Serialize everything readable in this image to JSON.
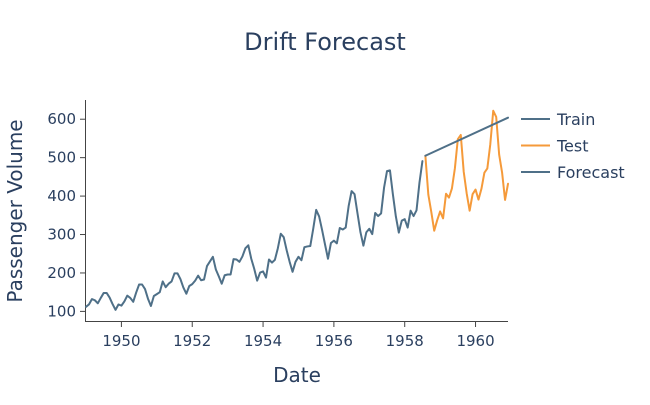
{
  "chart_data": {
    "type": "line",
    "title": "Drift Forecast",
    "xlabel": "Date",
    "ylabel": "Passenger Volume",
    "xlim": [
      "1949-01",
      "1960-12"
    ],
    "ylim": [
      75,
      650
    ],
    "x_ticks": [
      "1950",
      "1952",
      "1954",
      "1956",
      "1958",
      "1960"
    ],
    "y_ticks": [
      "100",
      "200",
      "300",
      "400",
      "500",
      "600"
    ],
    "grid": false,
    "legend_position": "right",
    "colors": {
      "Train": "#4f7088",
      "Test": "#f59a3a",
      "Forecast": "#4f7088"
    },
    "series": [
      {
        "name": "Train",
        "x": [
          "1949-01",
          "1949-02",
          "1949-03",
          "1949-04",
          "1949-05",
          "1949-06",
          "1949-07",
          "1949-08",
          "1949-09",
          "1949-10",
          "1949-11",
          "1949-12",
          "1950-01",
          "1950-02",
          "1950-03",
          "1950-04",
          "1950-05",
          "1950-06",
          "1950-07",
          "1950-08",
          "1950-09",
          "1950-10",
          "1950-11",
          "1950-12",
          "1951-01",
          "1951-02",
          "1951-03",
          "1951-04",
          "1951-05",
          "1951-06",
          "1951-07",
          "1951-08",
          "1951-09",
          "1951-10",
          "1951-11",
          "1951-12",
          "1952-01",
          "1952-02",
          "1952-03",
          "1952-04",
          "1952-05",
          "1952-06",
          "1952-07",
          "1952-08",
          "1952-09",
          "1952-10",
          "1952-11",
          "1952-12",
          "1953-01",
          "1953-02",
          "1953-03",
          "1953-04",
          "1953-05",
          "1953-06",
          "1953-07",
          "1953-08",
          "1953-09",
          "1953-10",
          "1953-11",
          "1953-12",
          "1954-01",
          "1954-02",
          "1954-03",
          "1954-04",
          "1954-05",
          "1954-06",
          "1954-07",
          "1954-08",
          "1954-09",
          "1954-10",
          "1954-11",
          "1954-12",
          "1955-01",
          "1955-02",
          "1955-03",
          "1955-04",
          "1955-05",
          "1955-06",
          "1955-07",
          "1955-08",
          "1955-09",
          "1955-10",
          "1955-11",
          "1955-12",
          "1956-01",
          "1956-02",
          "1956-03",
          "1956-04",
          "1956-05",
          "1956-06",
          "1956-07",
          "1956-08",
          "1956-09",
          "1956-10",
          "1956-11",
          "1956-12",
          "1957-01",
          "1957-02",
          "1957-03",
          "1957-04",
          "1957-05",
          "1957-06",
          "1957-07",
          "1957-08",
          "1957-09",
          "1957-10",
          "1957-11",
          "1957-12",
          "1958-01",
          "1958-02",
          "1958-03",
          "1958-04",
          "1958-05",
          "1958-06",
          "1958-07"
        ],
        "values": [
          112,
          118,
          132,
          129,
          121,
          135,
          148,
          148,
          136,
          119,
          104,
          118,
          115,
          126,
          141,
          135,
          125,
          149,
          170,
          170,
          158,
          133,
          114,
          140,
          145,
          150,
          178,
          163,
          172,
          178,
          199,
          199,
          184,
          162,
          146,
          166,
          171,
          180,
          193,
          181,
          183,
          218,
          230,
          242,
          209,
          191,
          172,
          194,
          196,
          196,
          236,
          235,
          229,
          243,
          264,
          272,
          237,
          211,
          180,
          201,
          204,
          188,
          235,
          227,
          234,
          264,
          302,
          293,
          259,
          229,
          203,
          229,
          242,
          233,
          267,
          269,
          270,
          315,
          364,
          347,
          312,
          274,
          237,
          278,
          284,
          277,
          317,
          313,
          318,
          374,
          413,
          405,
          355,
          306,
          271,
          306,
          315,
          301,
          356,
          348,
          355,
          422,
          465,
          467,
          404,
          347,
          305,
          336,
          340,
          318,
          362,
          348,
          363,
          435,
          491
        ]
      },
      {
        "name": "Test",
        "x": [
          "1958-08",
          "1958-09",
          "1958-10",
          "1958-11",
          "1958-12",
          "1959-01",
          "1959-02",
          "1959-03",
          "1959-04",
          "1959-05",
          "1959-06",
          "1959-07",
          "1959-08",
          "1959-09",
          "1959-10",
          "1959-11",
          "1959-12",
          "1960-01",
          "1960-02",
          "1960-03",
          "1960-04",
          "1960-05",
          "1960-06",
          "1960-07",
          "1960-08",
          "1960-09",
          "1960-10",
          "1960-11",
          "1960-12"
        ],
        "values": [
          505,
          404,
          359,
          310,
          337,
          360,
          342,
          406,
          396,
          420,
          472,
          548,
          559,
          463,
          407,
          362,
          405,
          417,
          391,
          419,
          461,
          472,
          535,
          622,
          606,
          508,
          461,
          390,
          432
        ]
      },
      {
        "name": "Forecast",
        "x": [
          "1958-08",
          "1960-12"
        ],
        "values": [
          505,
          604
        ]
      }
    ]
  }
}
